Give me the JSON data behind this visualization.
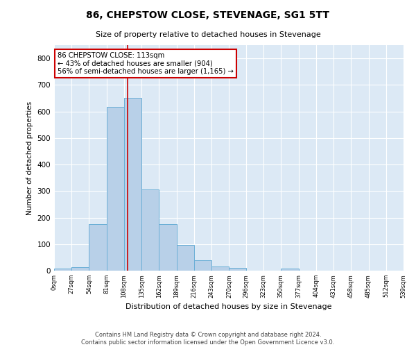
{
  "title": "86, CHEPSTOW CLOSE, STEVENAGE, SG1 5TT",
  "subtitle": "Size of property relative to detached houses in Stevenage",
  "xlabel": "Distribution of detached houses by size in Stevenage",
  "ylabel": "Number of detached properties",
  "bar_edges": [
    0,
    27,
    54,
    81,
    108,
    135,
    162,
    189,
    216,
    243,
    270,
    296,
    323,
    350,
    377,
    404,
    431,
    458,
    485,
    512,
    539
  ],
  "bar_heights": [
    8,
    13,
    175,
    618,
    650,
    305,
    175,
    98,
    40,
    15,
    10,
    0,
    0,
    8,
    0,
    0,
    0,
    0,
    0,
    0
  ],
  "bar_color": "#b8d0e8",
  "bar_edgecolor": "#6aaed6",
  "background_color": "#dce9f5",
  "vline_x": 113,
  "vline_color": "#cc0000",
  "annotation_line1": "86 CHEPSTOW CLOSE: 113sqm",
  "annotation_line2": "← 43% of detached houses are smaller (904)",
  "annotation_line3": "56% of semi-detached houses are larger (1,165) →",
  "annotation_box_color": "#cc0000",
  "ylim": [
    0,
    850
  ],
  "yticks": [
    0,
    100,
    200,
    300,
    400,
    500,
    600,
    700,
    800
  ],
  "footer_line1": "Contains HM Land Registry data © Crown copyright and database right 2024.",
  "footer_line2": "Contains public sector information licensed under the Open Government Licence v3.0."
}
